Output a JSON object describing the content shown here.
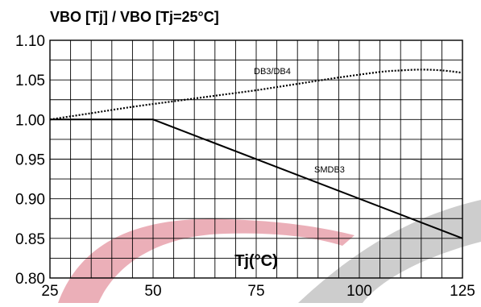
{
  "chart_data": {
    "type": "line",
    "title": "VBO [Tj] / VBO [Tj=25°C]",
    "xlabel": "Tj(°C)",
    "ylabel": "",
    "xlim": [
      25,
      125
    ],
    "ylim": [
      0.8,
      1.1
    ],
    "x_ticks": [
      "25",
      "50",
      "75",
      "100",
      "125"
    ],
    "y_ticks": [
      "0.80",
      "0.85",
      "0.90",
      "0.95",
      "1.00",
      "1.05",
      "1.10"
    ],
    "grid": true,
    "series": [
      {
        "name": "DB3/DB4",
        "style": "dotted",
        "color": "#000000",
        "x": [
          25,
          35,
          45,
          55,
          65,
          75,
          85,
          95,
          105,
          110,
          115,
          120,
          125
        ],
        "y": [
          1.0,
          1.008,
          1.016,
          1.023,
          1.03,
          1.037,
          1.045,
          1.053,
          1.06,
          1.062,
          1.063,
          1.062,
          1.059
        ]
      },
      {
        "name": "SMDB3",
        "style": "solid",
        "color": "#000000",
        "x": [
          25,
          50,
          125
        ],
        "y": [
          1.0,
          1.0,
          0.85
        ]
      }
    ]
  }
}
